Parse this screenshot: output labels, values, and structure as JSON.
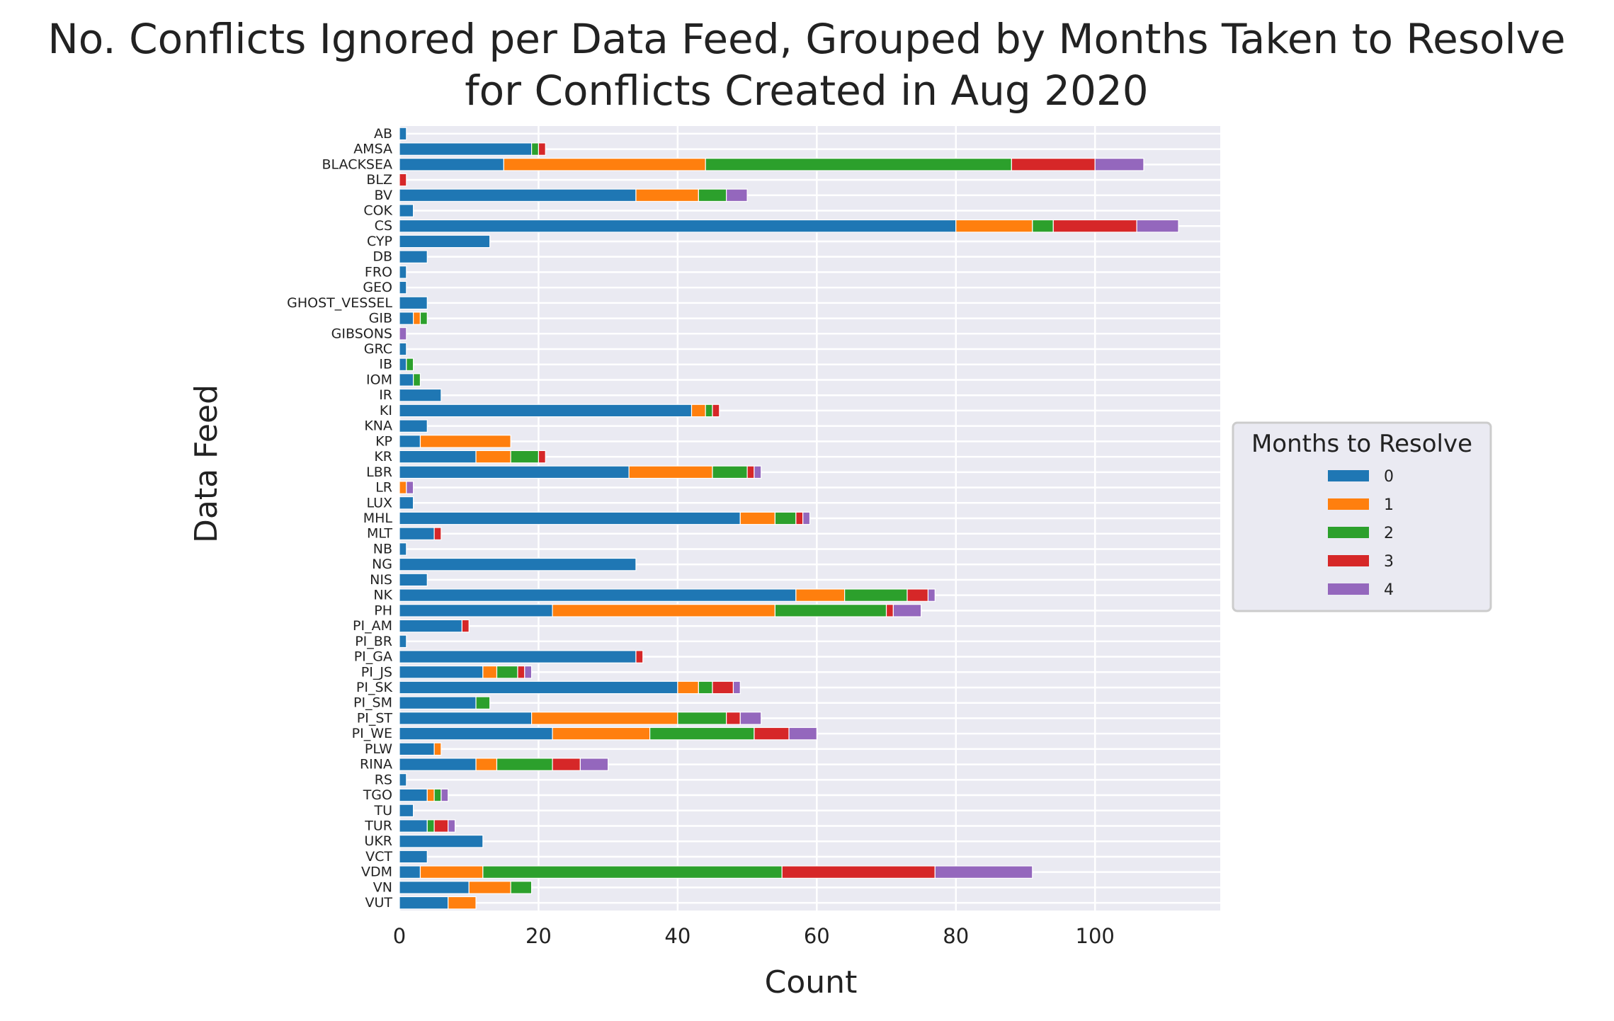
{
  "chart_data": {
    "type": "bar",
    "orientation": "horizontal",
    "stacked": true,
    "title": "No. Conflicts Ignored per Data Feed, Grouped by Months Taken to Resolve",
    "subtitle": "for Conflicts Created in Aug 2020",
    "xlabel": "Count",
    "ylabel": "Data Feed",
    "xlim": [
      0,
      118
    ],
    "xticks": [
      0,
      20,
      40,
      60,
      80,
      100
    ],
    "grid": true,
    "legend_position": "right",
    "legend_title": "Months to Resolve",
    "background_color": "#eaeaf2",
    "categories": [
      "AB",
      "AMSA",
      "BLACKSEA",
      "BLZ",
      "BV",
      "COK",
      "CS",
      "CYP",
      "DB",
      "FRO",
      "GEO",
      "GHOST_VESSEL",
      "GIB",
      "GIBSONS",
      "GRC",
      "IB",
      "IOM",
      "IR",
      "KI",
      "KNA",
      "KP",
      "KR",
      "LBR",
      "LR",
      "LUX",
      "MHL",
      "MLT",
      "NB",
      "NG",
      "NIS",
      "NK",
      "PH",
      "PI_AM",
      "PI_BR",
      "PI_GA",
      "PI_JS",
      "PI_SK",
      "PI_SM",
      "PI_ST",
      "PI_WE",
      "PLW",
      "RINA",
      "RS",
      "TGO",
      "TU",
      "TUR",
      "UKR",
      "VCT",
      "VDM",
      "VN",
      "VUT"
    ],
    "series": [
      {
        "name": "0",
        "color": "#1f77b4",
        "values": [
          1,
          19,
          15,
          0,
          34,
          2,
          80,
          13,
          4,
          1,
          1,
          4,
          2,
          0,
          1,
          1,
          2,
          6,
          42,
          4,
          3,
          11,
          33,
          0,
          2,
          49,
          5,
          1,
          34,
          4,
          57,
          22,
          9,
          1,
          34,
          12,
          40,
          11,
          19,
          22,
          5,
          11,
          1,
          4,
          2,
          4,
          12,
          4,
          3,
          10,
          7
        ]
      },
      {
        "name": "1",
        "color": "#ff7f0e",
        "values": [
          0,
          0,
          29,
          0,
          9,
          0,
          11,
          0,
          0,
          0,
          0,
          0,
          1,
          0,
          0,
          0,
          0,
          0,
          2,
          0,
          13,
          5,
          12,
          1,
          0,
          5,
          0,
          0,
          0,
          0,
          7,
          32,
          0,
          0,
          0,
          2,
          3,
          0,
          21,
          14,
          1,
          3,
          0,
          1,
          0,
          0,
          0,
          0,
          9,
          6,
          4
        ]
      },
      {
        "name": "2",
        "color": "#2ca02c",
        "values": [
          0,
          1,
          44,
          0,
          4,
          0,
          3,
          0,
          0,
          0,
          0,
          0,
          1,
          0,
          0,
          1,
          1,
          0,
          1,
          0,
          0,
          4,
          5,
          0,
          0,
          3,
          0,
          0,
          0,
          0,
          9,
          16,
          0,
          0,
          0,
          3,
          2,
          2,
          7,
          15,
          0,
          8,
          0,
          1,
          0,
          1,
          0,
          0,
          43,
          3,
          0
        ]
      },
      {
        "name": "3",
        "color": "#d62728",
        "values": [
          0,
          1,
          12,
          1,
          0,
          0,
          12,
          0,
          0,
          0,
          0,
          0,
          0,
          0,
          0,
          0,
          0,
          0,
          1,
          0,
          0,
          1,
          1,
          0,
          0,
          1,
          1,
          0,
          0,
          0,
          3,
          1,
          1,
          0,
          1,
          1,
          3,
          0,
          2,
          5,
          0,
          4,
          0,
          0,
          0,
          2,
          0,
          0,
          22,
          0,
          0
        ]
      },
      {
        "name": "4",
        "color": "#9467bd",
        "values": [
          0,
          0,
          7,
          0,
          3,
          0,
          6,
          0,
          0,
          0,
          0,
          0,
          0,
          1,
          0,
          0,
          0,
          0,
          0,
          0,
          0,
          0,
          1,
          1,
          0,
          1,
          0,
          0,
          0,
          0,
          1,
          4,
          0,
          0,
          0,
          1,
          1,
          0,
          3,
          4,
          0,
          4,
          0,
          1,
          0,
          1,
          0,
          0,
          14,
          0,
          0
        ]
      }
    ]
  }
}
